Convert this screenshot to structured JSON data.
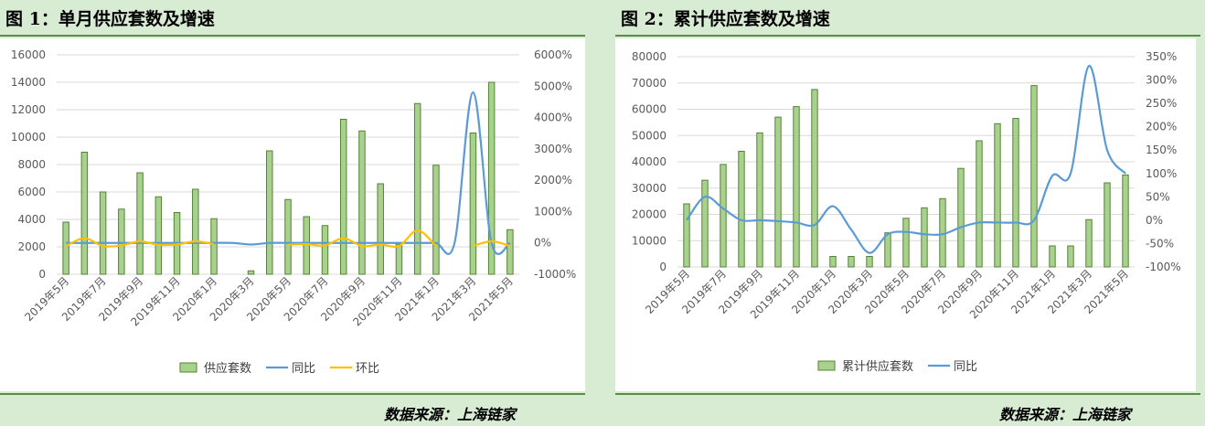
{
  "figures": [
    {
      "title": "图 1：单月供应套数及增速",
      "source": "数据来源：上海链家"
    },
    {
      "title": "图 2：累计供应套数及增速",
      "source": "数据来源：上海链家"
    }
  ],
  "colors": {
    "bar": "#a9d18e",
    "bar_border": "#548235",
    "yoy": "#5b9bd5",
    "mom": "#ffc000",
    "rule": "#5d8a4a",
    "page_bg": "#d8ecd4"
  },
  "chart_data": [
    {
      "type": "bar",
      "categories": [
        "2019年5月",
        "2019年6月",
        "2019年7月",
        "2019年8月",
        "2019年9月",
        "2019年10月",
        "2019年11月",
        "2019年12月",
        "2020年1月",
        "2020年2月",
        "2020年3月",
        "2020年4月",
        "2020年5月",
        "2020年6月",
        "2020年7月",
        "2020年8月",
        "2020年9月",
        "2020年10月",
        "2020年11月",
        "2020年12月",
        "2021年1月",
        "2021年2月",
        "2021年3月",
        "2021年4月",
        "2021年5月"
      ],
      "tick_labels": [
        "2019年5月",
        "2019年7月",
        "2019年9月",
        "2019年11月",
        "2020年1月",
        "2020年3月",
        "2020年5月",
        "2020年7月",
        "2020年9月",
        "2020年11月",
        "2021年1月",
        "2021年3月",
        "2021年5月"
      ],
      "series": [
        {
          "name": "供应套数",
          "type": "bar",
          "axis": "left",
          "values": [
            3800,
            8900,
            6000,
            4750,
            7400,
            5650,
            4500,
            6200,
            4050,
            null,
            250,
            9000,
            5450,
            4200,
            3550,
            11300,
            10450,
            6600,
            2200,
            12450,
            7950,
            null,
            10300,
            14000,
            3250
          ]
        },
        {
          "name": "同比",
          "type": "line",
          "axis": "right",
          "values": [
            0,
            0,
            0,
            0,
            0,
            0,
            0,
            0,
            0,
            0,
            -50,
            0,
            0,
            0,
            0,
            0,
            0,
            0,
            0,
            0,
            0,
            0,
            4800,
            0,
            0
          ]
        },
        {
          "name": "环比",
          "type": "line",
          "axis": "right",
          "values": [
            -100,
            150,
            -100,
            -80,
            50,
            -60,
            -50,
            50,
            -40,
            null,
            -50,
            null,
            -60,
            -40,
            -80,
            150,
            -100,
            -50,
            -100,
            400,
            -100,
            null,
            -100,
            50,
            -100
          ]
        }
      ],
      "y_left": {
        "min": 0,
        "max": 16000,
        "ticks": [
          0,
          2000,
          4000,
          6000,
          8000,
          10000,
          12000,
          14000,
          16000
        ]
      },
      "y_right": {
        "min": -1000,
        "max": 6000,
        "ticks": [
          "-1000%",
          "0%",
          "1000%",
          "2000%",
          "3000%",
          "4000%",
          "5000%",
          "6000%"
        ]
      },
      "legend": [
        "供应套数",
        "同比",
        "环比"
      ],
      "legend_position": "bottom",
      "grid": true
    },
    {
      "type": "bar",
      "categories": [
        "2019年5月",
        "2019年6月",
        "2019年7月",
        "2019年8月",
        "2019年9月",
        "2019年10月",
        "2019年11月",
        "2019年12月",
        "2020年1月",
        "2020年2月",
        "2020年3月",
        "2020年4月",
        "2020年5月",
        "2020年6月",
        "2020年7月",
        "2020年8月",
        "2020年9月",
        "2020年10月",
        "2020年11月",
        "2020年12月",
        "2021年1月",
        "2021年2月",
        "2021年3月",
        "2021年4月",
        "2021年5月"
      ],
      "tick_labels": [
        "2019年5月",
        "2019年7月",
        "2019年9月",
        "2019年11月",
        "2020年1月",
        "2020年3月",
        "2020年5月",
        "2020年7月",
        "2020年9月",
        "2020年11月",
        "2021年1月",
        "2021年3月",
        "2021年5月"
      ],
      "series": [
        {
          "name": "累计供应套数",
          "type": "bar",
          "axis": "left",
          "values": [
            24000,
            33000,
            39000,
            44000,
            51000,
            57000,
            61000,
            67500,
            4000,
            4000,
            4000,
            13000,
            18500,
            22500,
            26000,
            37500,
            48000,
            54500,
            56500,
            69000,
            8000,
            8000,
            18000,
            32000,
            35000
          ]
        },
        {
          "name": "同比",
          "type": "line",
          "axis": "right",
          "values": [
            0,
            50,
            25,
            0,
            0,
            -2,
            -5,
            -10,
            30,
            -20,
            -70,
            -30,
            -25,
            -30,
            -30,
            -15,
            -5,
            -5,
            -5,
            0,
            95,
            100,
            330,
            150,
            100
          ]
        }
      ],
      "y_left": {
        "min": 0,
        "max": 80000,
        "ticks": [
          0,
          10000,
          20000,
          30000,
          40000,
          50000,
          60000,
          70000,
          80000
        ]
      },
      "y_right": {
        "min": -100,
        "max": 350,
        "ticks": [
          "-100%",
          "-50%",
          "0%",
          "50%",
          "100%",
          "150%",
          "200%",
          "250%",
          "300%",
          "350%"
        ]
      },
      "legend": [
        "累计供应套数",
        "同比"
      ],
      "legend_position": "bottom",
      "grid": true
    }
  ]
}
